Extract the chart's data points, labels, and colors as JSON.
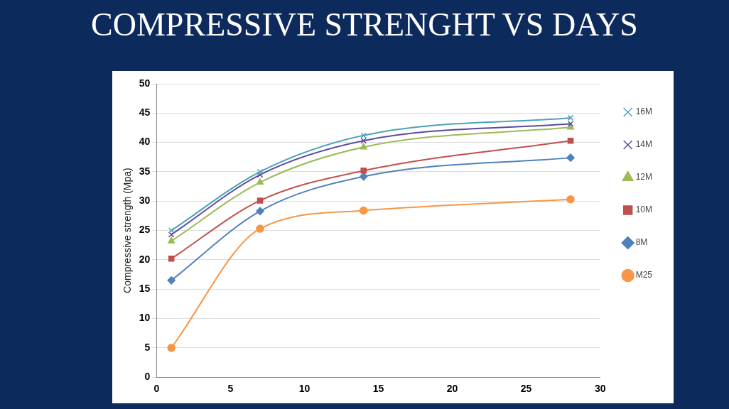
{
  "chart_data": {
    "type": "line",
    "title": "COMPRESSIVE STRENGHT VS DAYS",
    "ylabel": "Compressive strength (Mpa)",
    "x": [
      1,
      7,
      14,
      28
    ],
    "series": [
      {
        "name": "16M",
        "color": "#4aa3b8",
        "marker": "cross",
        "values": [
          25,
          35,
          41.2,
          44.2
        ]
      },
      {
        "name": "14M",
        "color": "#5b4a9e",
        "marker": "cross",
        "values": [
          24.3,
          34.5,
          40.3,
          43.2
        ]
      },
      {
        "name": "12M",
        "color": "#9bbb59",
        "marker": "triangle",
        "values": [
          23.2,
          33.2,
          39.2,
          42.6
        ]
      },
      {
        "name": "10M",
        "color": "#c0504d",
        "marker": "square",
        "values": [
          20.2,
          30.1,
          35.2,
          40.3
        ]
      },
      {
        "name": "8M",
        "color": "#4f81bd",
        "marker": "diamond",
        "values": [
          16.5,
          28.3,
          34.2,
          37.4
        ]
      },
      {
        "name": "M25",
        "color": "#f79646",
        "marker": "circle",
        "values": [
          5,
          25.3,
          28.4,
          30.3
        ]
      }
    ],
    "xlim": [
      0,
      30
    ],
    "xticks": [
      0,
      5,
      10,
      15,
      20,
      25,
      30
    ],
    "ylim": [
      0,
      50
    ],
    "yticks": [
      0,
      5,
      10,
      15,
      20,
      25,
      30,
      35,
      40,
      45,
      50
    ],
    "grid": "y",
    "legend": "right",
    "line_style": "solid"
  }
}
